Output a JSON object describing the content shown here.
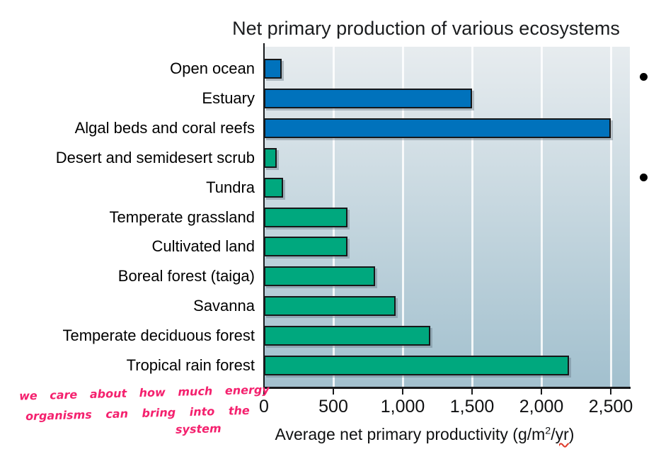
{
  "title": "Net primary production of various ecosystems",
  "chart_data": {
    "type": "bar",
    "orientation": "horizontal",
    "title": "Net primary production of various ecosystems",
    "categories": [
      "Open ocean",
      "Estuary",
      "Algal beds and coral reefs",
      "Desert and semidesert scrub",
      "Tundra",
      "Temperate grassland",
      "Cultivated land",
      "Boreal forest (taiga)",
      "Savanna",
      "Temperate deciduous forest",
      "Tropical rain forest"
    ],
    "values": [
      125,
      1500,
      2500,
      90,
      140,
      600,
      600,
      800,
      950,
      1200,
      2200
    ],
    "bar_colors": [
      "#0072bc",
      "#0072bc",
      "#0072bc",
      "#00a87e",
      "#00a87e",
      "#00a87e",
      "#00a87e",
      "#00a87e",
      "#00a87e",
      "#00a87e",
      "#00a87e"
    ],
    "bar_border_color": "#16181a",
    "xlabel_parts": {
      "prefix": "Average net primary productivity (g/m",
      "sup": "2",
      "slash": "/",
      "squiggle_word": "yr",
      "close": ")"
    },
    "xticks": [
      0,
      500,
      1000,
      1500,
      2000,
      2500
    ],
    "xtick_labels": [
      "0",
      "500",
      "1,000",
      "1,500",
      "2,000",
      "2,500"
    ],
    "xlim": [
      0,
      2640
    ],
    "grid": true,
    "gridline_color": "#ffffff",
    "plot_bg_top": "#e7ecef",
    "plot_bg_bottom": "#a2c0ce",
    "legend": null
  },
  "annotations": {
    "handwriting": {
      "color": "#f4216e",
      "lines": [
        "we care about how much energy",
        "organisms can bring into the",
        "system"
      ]
    },
    "spellcheck_underline_color": "#df3a2a",
    "bullets_count": 2
  }
}
